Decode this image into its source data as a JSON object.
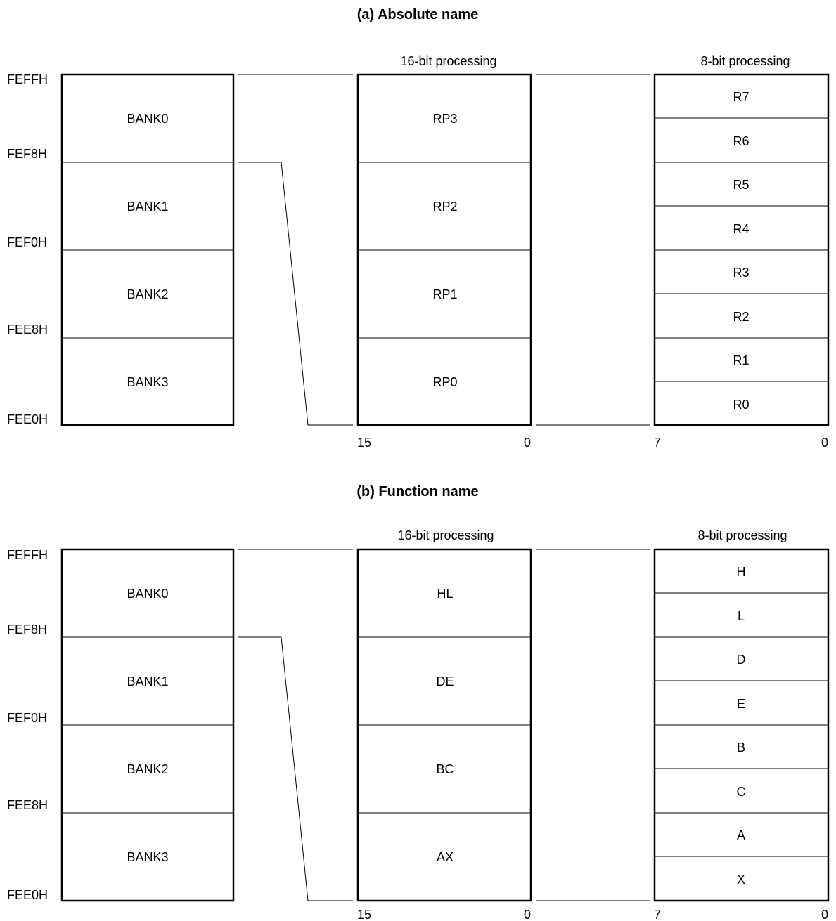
{
  "diagrams": [
    {
      "title": "(a)  Absolute name",
      "address_labels": [
        "FEFFH",
        "FEF8H",
        "FEF0H",
        "FEE8H",
        "FEE0H"
      ],
      "banks": [
        "BANK0",
        "BANK1",
        "BANK2",
        "BANK3"
      ],
      "pair_header": "16-bit processing",
      "pairs": [
        "RP3",
        "RP2",
        "RP1",
        "RP0"
      ],
      "pair_bits": {
        "high": "15",
        "low": "0"
      },
      "reg_header": "8-bit processing",
      "registers": [
        "R7",
        "R6",
        "R5",
        "R4",
        "R3",
        "R2",
        "R1",
        "R0"
      ],
      "reg_bits": {
        "high": "7",
        "low": "0"
      }
    },
    {
      "title": "(b)  Function name",
      "address_labels": [
        "FEFFH",
        "FEF8H",
        "FEF0H",
        "FEE8H",
        "FEE0H"
      ],
      "banks": [
        "BANK0",
        "BANK1",
        "BANK2",
        "BANK3"
      ],
      "pair_header": "16-bit processing",
      "pairs": [
        "HL",
        "DE",
        "BC",
        "AX"
      ],
      "pair_bits": {
        "high": "15",
        "low": "0"
      },
      "reg_header": "8-bit processing",
      "registers": [
        "H",
        "L",
        "D",
        "E",
        "B",
        "C",
        "A",
        "X"
      ],
      "reg_bits": {
        "high": "7",
        "low": "0"
      }
    }
  ]
}
